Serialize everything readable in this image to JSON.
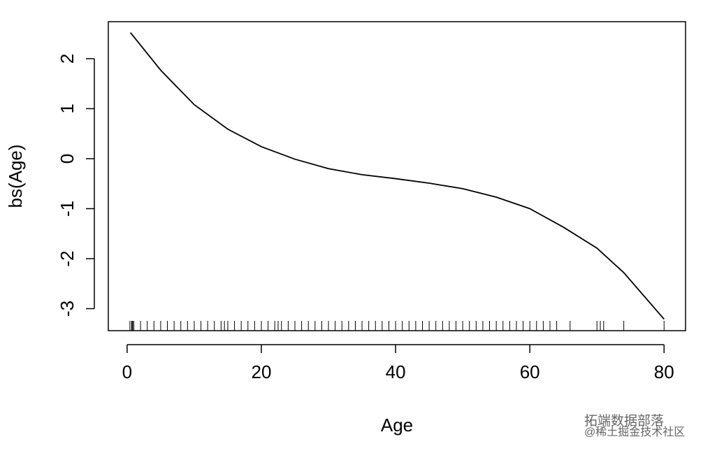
{
  "chart_data": {
    "type": "line",
    "x_label": "Age",
    "y_label": "bs(Age)",
    "x": [
      0.5,
      5,
      10,
      15,
      20,
      25,
      30,
      35,
      40,
      45,
      50,
      55,
      60,
      65,
      70,
      74,
      80
    ],
    "series": [
      {
        "color": "#000000",
        "values": [
          2.52,
          1.77,
          1.08,
          0.59,
          0.24,
          -0.01,
          -0.2,
          -0.32,
          -0.4,
          -0.49,
          -0.6,
          -0.77,
          -1.0,
          -1.37,
          -1.79,
          -2.28,
          -3.21
        ]
      }
    ],
    "rug": [
      0.42,
      0.67,
      0.75,
      0.83,
      1,
      2,
      3,
      4,
      5,
      6,
      7,
      8,
      9,
      10,
      11,
      12,
      13,
      14,
      14.5,
      15,
      16,
      17,
      18,
      19,
      20,
      21,
      22,
      22.5,
      23,
      24,
      25,
      26,
      27,
      28,
      29,
      30,
      31,
      32,
      33,
      34,
      35,
      36,
      37,
      38,
      39,
      40,
      41,
      42,
      43,
      44,
      45,
      46,
      47,
      48,
      49,
      50,
      51,
      52,
      53,
      54,
      55,
      56,
      57,
      58,
      59,
      60,
      61,
      62,
      63,
      64,
      66,
      70,
      70.5,
      71,
      74,
      80
    ],
    "xlim": [
      -2.8,
      83.2
    ],
    "ylim": [
      -3.44,
      2.74
    ],
    "xticks": [
      0,
      20,
      40,
      60,
      80
    ],
    "yticks": [
      -3,
      -2,
      -1,
      0,
      1,
      2
    ],
    "watermark": [
      "拓端数据部落",
      "@稀土掘金技术社区"
    ]
  }
}
